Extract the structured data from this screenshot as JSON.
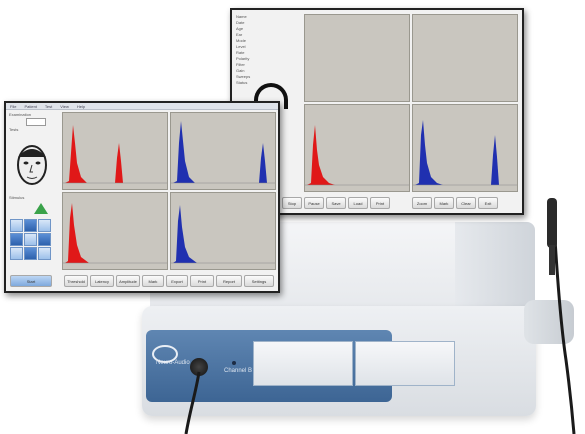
{
  "colors": {
    "device_blue": "#4a73a3",
    "plot_bg": "#c9c6bf",
    "trace_red": "#e01818",
    "trace_blue": "#2030b0",
    "cable": "#1a1a1a"
  },
  "device": {
    "panel_label_left": "Neuro-Audio",
    "panel_label_right": "Channel B"
  },
  "front_screen": {
    "menu_items": [
      "File",
      "Patient",
      "Test",
      "View",
      "Help"
    ],
    "side_labels": [
      "Examination",
      "Tests",
      "Stimulus"
    ],
    "bottom_buttons": [
      "Start",
      "Threshold",
      "Latency",
      "Amplitude",
      "Mark",
      "Export",
      "Print",
      "Report",
      "Settings"
    ]
  },
  "rear_screen": {
    "side_labels": [
      "Name",
      "Date",
      "Age",
      "Ear",
      "Mode",
      "Level",
      "Rate",
      "Polarity",
      "Filter",
      "Gain",
      "Sweeps",
      "Status"
    ],
    "bottom_buttons": [
      "Stop",
      "Pause",
      "Save",
      "Load",
      "Print",
      "Zoom",
      "Mark",
      "Clear",
      "Exit"
    ]
  },
  "icons": [
    "face-icon",
    "arrow-up-icon",
    "arrow-down-icon",
    "arrow-left-icon",
    "arrow-right-icon",
    "head-icon",
    "ear-icon"
  ]
}
